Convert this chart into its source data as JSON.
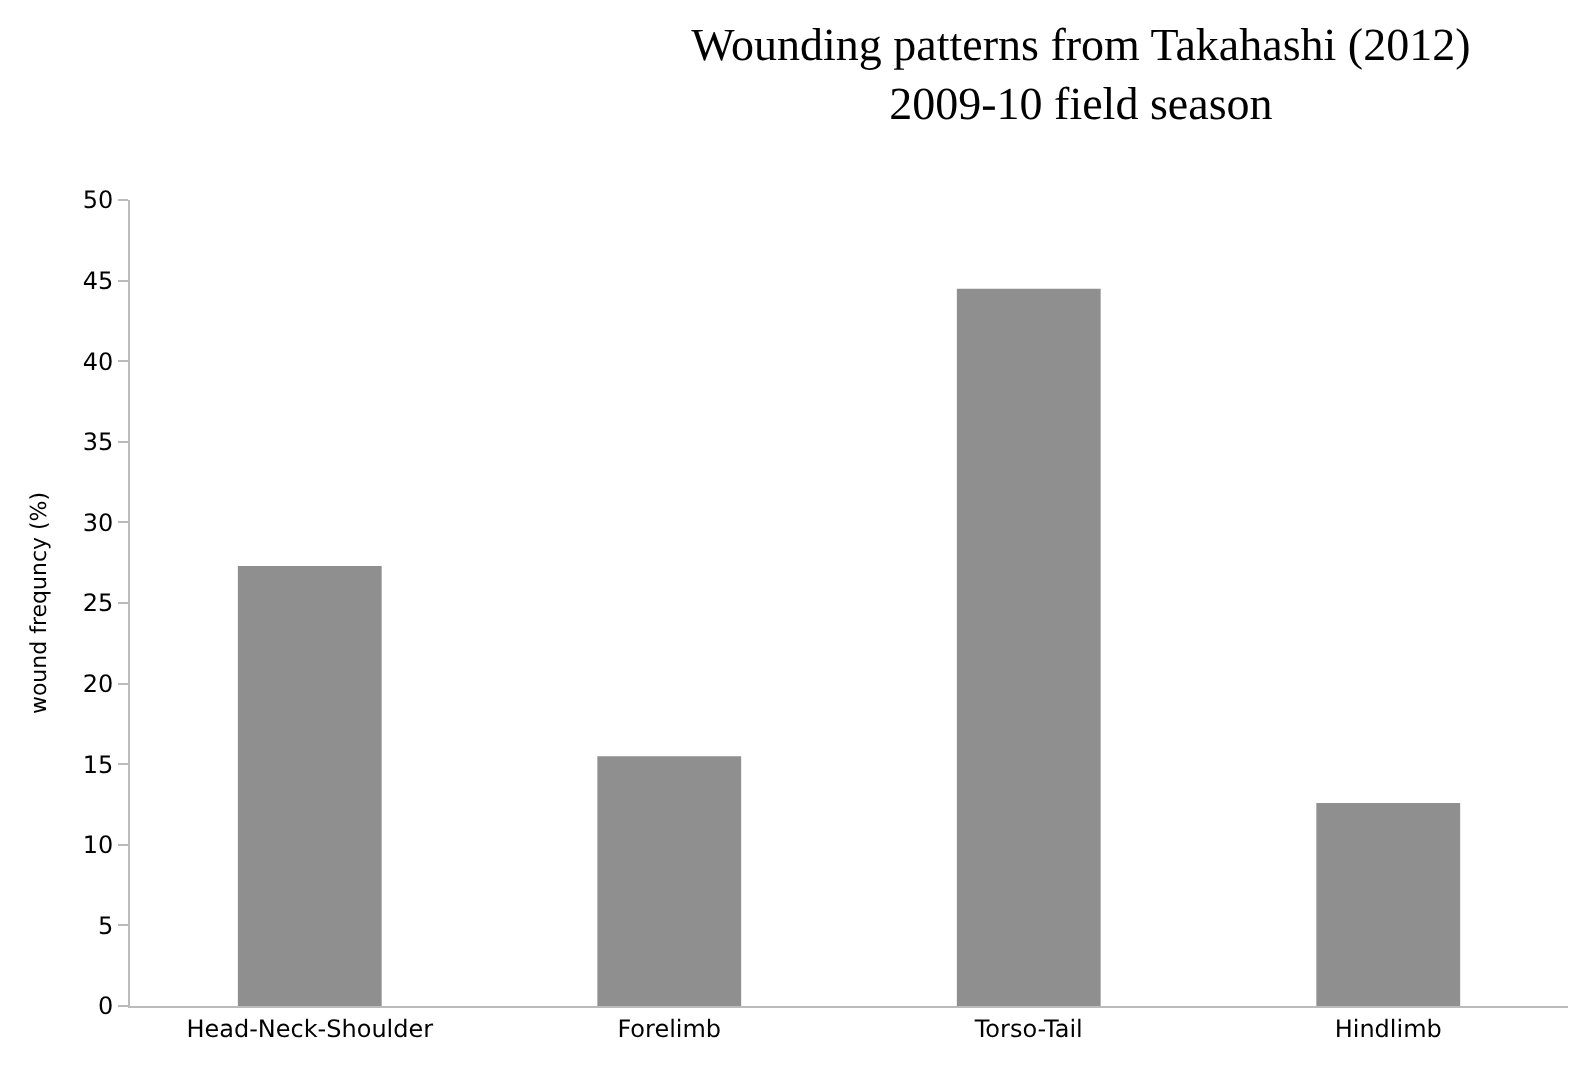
{
  "chart_data": {
    "type": "bar",
    "title": "Wounding patterns from Takahashi (2012)",
    "subtitle": "2009-10 field season",
    "ylabel": "wound frequncy (%)",
    "categories": [
      "Head-Neck-Shoulder",
      "Forelimb",
      "Torso-Tail",
      "Hindlimb"
    ],
    "values": [
      27.3,
      15.5,
      44.5,
      12.6
    ],
    "color": "#8f8f8f",
    "ylim": [
      0,
      50
    ],
    "yticks": [
      0,
      5,
      10,
      15,
      20,
      25,
      30,
      35,
      40,
      45,
      50
    ]
  }
}
